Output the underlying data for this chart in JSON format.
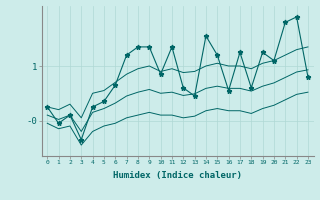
{
  "xlabel": "Humidex (Indice chaleur)",
  "x": [
    0,
    1,
    2,
    3,
    4,
    5,
    6,
    7,
    8,
    9,
    10,
    11,
    12,
    13,
    14,
    15,
    16,
    17,
    18,
    19,
    20,
    21,
    22,
    23
  ],
  "y_main": [
    0.25,
    -0.05,
    0.1,
    -0.35,
    0.25,
    0.35,
    0.65,
    1.2,
    1.35,
    1.35,
    0.85,
    1.35,
    0.6,
    0.45,
    1.55,
    1.2,
    0.55,
    1.25,
    0.6,
    1.25,
    1.1,
    1.8,
    1.9,
    0.8
  ],
  "y_upper": [
    0.25,
    0.2,
    0.3,
    0.05,
    0.5,
    0.55,
    0.7,
    0.85,
    0.95,
    1.0,
    0.9,
    0.95,
    0.88,
    0.9,
    1.0,
    1.05,
    1.0,
    1.0,
    0.95,
    1.05,
    1.1,
    1.2,
    1.3,
    1.35
  ],
  "y_lower": [
    -0.05,
    -0.15,
    -0.1,
    -0.45,
    -0.2,
    -0.1,
    -0.05,
    0.05,
    0.1,
    0.15,
    0.1,
    0.1,
    0.05,
    0.08,
    0.18,
    0.22,
    0.18,
    0.18,
    0.13,
    0.22,
    0.28,
    0.38,
    0.48,
    0.52
  ],
  "y_mid": [
    0.1,
    0.02,
    0.1,
    -0.2,
    0.15,
    0.22,
    0.32,
    0.45,
    0.52,
    0.57,
    0.5,
    0.52,
    0.46,
    0.49,
    0.59,
    0.63,
    0.59,
    0.59,
    0.54,
    0.63,
    0.69,
    0.79,
    0.89,
    0.93
  ],
  "bg_color": "#cdecea",
  "line_color": "#006666",
  "grid_color": "#b0d8d5",
  "ylim": [
    -0.65,
    2.1
  ],
  "xlim": [
    -0.5,
    23.5
  ],
  "ytick_vals": [
    1.0,
    -0.0
  ],
  "ytick_labels": [
    "1",
    "-0"
  ]
}
